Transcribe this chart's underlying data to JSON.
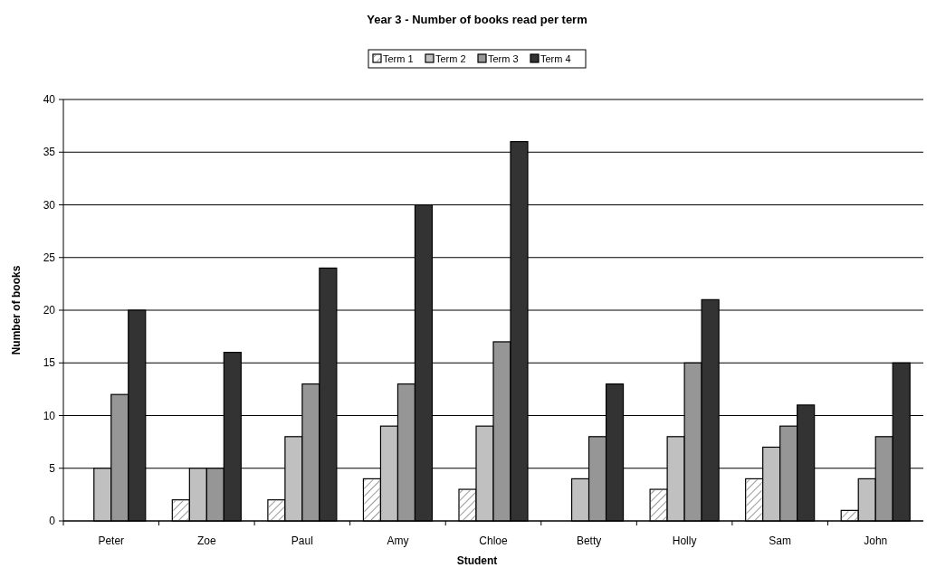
{
  "chart_data": {
    "type": "bar",
    "title": "Year 3 - Number of books read per term",
    "xlabel": "Student",
    "ylabel": "Number of books",
    "categories": [
      "Peter",
      "Zoe",
      "Paul",
      "Amy",
      "Chloe",
      "Betty",
      "Holly",
      "Sam",
      "John"
    ],
    "series": [
      {
        "name": "Term 1",
        "color": "#ffffff",
        "values": [
          0,
          2,
          2,
          4,
          3,
          0,
          3,
          4,
          1
        ]
      },
      {
        "name": "Term 2",
        "color": "#c0c0c0",
        "values": [
          5,
          5,
          8,
          9,
          9,
          4,
          8,
          7,
          4
        ]
      },
      {
        "name": "Term 3",
        "color": "#969696",
        "values": [
          12,
          5,
          13,
          13,
          17,
          8,
          15,
          9,
          8
        ]
      },
      {
        "name": "Term 4",
        "color": "#333333",
        "values": [
          20,
          16,
          24,
          30,
          36,
          13,
          21,
          11,
          15
        ]
      }
    ],
    "ylim": [
      0,
      40
    ],
    "yticks": [
      0,
      5,
      10,
      15,
      20,
      25,
      30,
      35,
      40
    ],
    "grid": "y",
    "legend": "top"
  }
}
